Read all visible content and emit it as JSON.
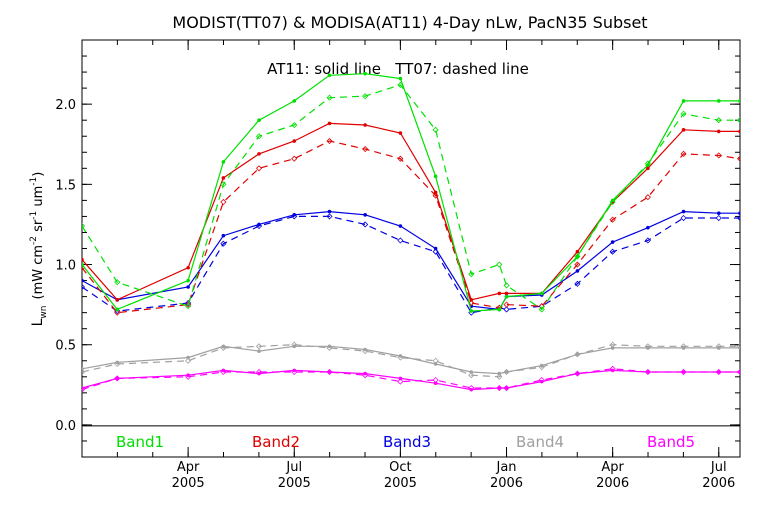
{
  "chart_data": {
    "type": "line",
    "title": "MODIST(TT07) & MODISA(AT11) 4-Day nLw, PacN35 Subset",
    "annotation": "AT11: solid line   TT07: dashed line",
    "ylabel_main": "L",
    "ylabel_sub": "wn",
    "ylabel_units": "(mW cm",
    "ylabel_sup1": "-2",
    "ylabel_mid": " sr",
    "ylabel_sup2": "-1",
    "ylabel_end": " um",
    "ylabel_sup3": "-1",
    "ylabel_close": ")",
    "ylim": [
      -0.2,
      2.4
    ],
    "y_ticks": [
      {
        "v": 0.0,
        "label": "0.0"
      },
      {
        "v": 0.5,
        "label": "0.5"
      },
      {
        "v": 1.0,
        "label": "1.0"
      },
      {
        "v": 1.5,
        "label": "1.5"
      },
      {
        "v": 2.0,
        "label": "2.0"
      }
    ],
    "xlim": [
      2005.0,
      2006.55
    ],
    "x_ticks": [
      {
        "v": 2005.25,
        "label1": "Apr",
        "label2": "2005"
      },
      {
        "v": 2005.5,
        "label1": "Jul",
        "label2": "2005"
      },
      {
        "v": 2005.75,
        "label1": "Oct",
        "label2": "2005"
      },
      {
        "v": 2006.0,
        "label1": "Jan",
        "label2": "2006"
      },
      {
        "v": 2006.25,
        "label1": "Apr",
        "label2": "2006"
      },
      {
        "v": 2006.5,
        "label1": "Jul",
        "label2": "2006"
      }
    ],
    "x": [
      2005.0,
      2005.083,
      2005.25,
      2005.333,
      2005.417,
      2005.5,
      2005.583,
      2005.667,
      2005.75,
      2005.833,
      2005.917,
      2005.983,
      2006.0,
      2006.083,
      2006.167,
      2006.25,
      2006.333,
      2006.417,
      2006.5,
      2006.55
    ],
    "series": [
      {
        "name": "Band1",
        "color": "#00e000",
        "at11": [
          1.0,
          0.72,
          0.9,
          1.64,
          1.9,
          2.02,
          2.18,
          2.19,
          2.16,
          1.55,
          0.71,
          0.72,
          0.8,
          0.82,
          1.05,
          1.4,
          1.62,
          2.02,
          2.02,
          2.02
        ],
        "tt07": [
          1.24,
          0.89,
          0.74,
          1.5,
          1.8,
          1.87,
          2.04,
          2.05,
          2.12,
          1.84,
          0.94,
          1.0,
          0.87,
          0.72,
          1.05,
          1.39,
          1.63,
          1.94,
          1.9,
          1.9
        ]
      },
      {
        "name": "Band2",
        "color": "#e00000",
        "at11": [
          1.03,
          0.78,
          0.98,
          1.54,
          1.69,
          1.77,
          1.88,
          1.87,
          1.82,
          1.45,
          0.78,
          0.82,
          0.82,
          0.82,
          1.08,
          1.39,
          1.6,
          1.84,
          1.83,
          1.83
        ],
        "tt07": [
          0.98,
          0.7,
          0.75,
          1.39,
          1.6,
          1.66,
          1.77,
          1.72,
          1.66,
          1.43,
          0.76,
          0.73,
          0.75,
          0.74,
          1.0,
          1.28,
          1.42,
          1.69,
          1.68,
          1.66
        ]
      },
      {
        "name": "Band3",
        "color": "#0000e0",
        "at11": [
          0.9,
          0.78,
          0.86,
          1.18,
          1.25,
          1.31,
          1.33,
          1.31,
          1.24,
          1.1,
          0.74,
          0.72,
          0.8,
          0.81,
          0.96,
          1.14,
          1.23,
          1.33,
          1.32,
          1.32
        ],
        "tt07": [
          0.86,
          0.71,
          0.76,
          1.13,
          1.24,
          1.3,
          1.3,
          1.25,
          1.15,
          1.08,
          0.7,
          0.73,
          0.72,
          0.74,
          0.88,
          1.08,
          1.15,
          1.29,
          1.29,
          1.29
        ]
      },
      {
        "name": "Band4",
        "color": "#a0a0a0",
        "at11": [
          0.35,
          0.39,
          0.42,
          0.49,
          0.46,
          0.49,
          0.49,
          0.47,
          0.43,
          0.38,
          0.33,
          0.32,
          0.33,
          0.37,
          0.44,
          0.48,
          0.48,
          0.48,
          0.48,
          0.48
        ],
        "tt07": [
          0.33,
          0.38,
          0.4,
          0.48,
          0.49,
          0.5,
          0.48,
          0.46,
          0.42,
          0.4,
          0.31,
          0.3,
          0.33,
          0.36,
          0.44,
          0.5,
          0.49,
          0.49,
          0.49,
          0.49
        ]
      },
      {
        "name": "Band5",
        "color": "#ff00ff",
        "at11": [
          0.23,
          0.29,
          0.31,
          0.34,
          0.32,
          0.34,
          0.33,
          0.32,
          0.29,
          0.26,
          0.22,
          0.23,
          0.23,
          0.27,
          0.32,
          0.34,
          0.33,
          0.33,
          0.33,
          0.33
        ],
        "tt07": [
          0.22,
          0.29,
          0.3,
          0.33,
          0.33,
          0.33,
          0.33,
          0.31,
          0.27,
          0.28,
          0.23,
          0.23,
          0.23,
          0.28,
          0.32,
          0.35,
          0.33,
          0.33,
          0.33,
          0.33
        ]
      }
    ]
  }
}
